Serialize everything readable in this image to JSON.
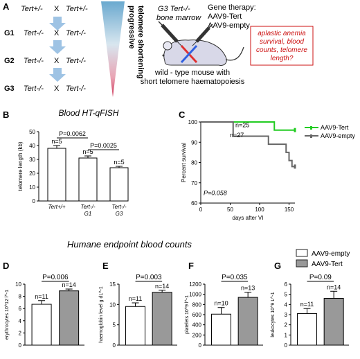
{
  "panels": {
    "A": "A",
    "B": "B",
    "C": "C",
    "D": "D",
    "E": "E",
    "F": "F",
    "G": "G"
  },
  "breeding": {
    "top": {
      "left": "Tert+/-",
      "x": "X",
      "right": "Tert+/-"
    },
    "rows": [
      {
        "gen": "G1",
        "left": "Tert-/-",
        "x": "X",
        "right": "Tert-/-"
      },
      {
        "gen": "G2",
        "left": "Tert-/-",
        "x": "X",
        "right": "Tert-/-"
      },
      {
        "gen": "G3",
        "left": "Tert-/-",
        "x": "X",
        "right": "Tert-/-"
      }
    ],
    "vertical_label_1": "progressive",
    "vertical_label_2": "telomere shortening"
  },
  "therapy": {
    "donor_1": "G3 Tert-/-",
    "donor_2": "bone marrow",
    "gene_title": "Gene therapy:",
    "vector_1": "AAV9-Tert",
    "vector_2": "AAV9-empty",
    "mouse_caption_1": "wild - type mouse with",
    "mouse_caption_2": "short telomere haematopoiesis",
    "question_1": "aplastic anemia",
    "question_2": "survival, blood",
    "question_3": "counts, telomere",
    "question_4": "length?",
    "question_color": "#cc1111"
  },
  "section_title": "Humane endpoint blood counts",
  "legend": {
    "empty": "AAV9-empty",
    "tert": "AAV9-Tert"
  },
  "colors": {
    "empty": "#ffffff",
    "tert": "#999999",
    "km_tert": "#22cc22",
    "km_empty": "#666666"
  },
  "chart_data": [
    {
      "panel": "B",
      "type": "bar",
      "title": "Blood HT-qFISH",
      "ylabel": "telomere length (kb)",
      "ylim": [
        0,
        50
      ],
      "yticks": [
        0,
        10,
        20,
        30,
        40,
        50
      ],
      "categories": [
        "Tert+/+",
        "Tert-/- G1",
        "Tert-/- G3"
      ],
      "cat_lines": [
        [
          "Tert+/+"
        ],
        [
          "Tert-/-",
          "G1"
        ],
        [
          "Tert-/-",
          "G3"
        ]
      ],
      "values": [
        38,
        31,
        24
      ],
      "errors": [
        2,
        1.5,
        1
      ],
      "n_labels": [
        "n=5",
        "n=5",
        "n=5"
      ],
      "pvalues": [
        {
          "label": "P=0.0062",
          "pair": [
            0,
            1
          ]
        },
        {
          "label": "P=0.0025",
          "pair": [
            1,
            2
          ]
        }
      ]
    },
    {
      "panel": "C",
      "type": "line",
      "ylabel": "Percent survival",
      "xlabel": "days after VI",
      "xlim": [
        0,
        160
      ],
      "ylim": [
        60,
        100
      ],
      "xticks": [
        0,
        50,
        100,
        150
      ],
      "yticks": [
        60,
        70,
        80,
        90,
        100
      ],
      "series": [
        {
          "name": "AAV9-Tert",
          "n_label": "n=25",
          "points": [
            [
              0,
              100
            ],
            [
              55,
              100
            ],
            [
              55,
              100
            ],
            [
              125,
              100
            ],
            [
              125,
              96
            ],
            [
              160,
              96
            ]
          ]
        },
        {
          "name": "AAV9-empty",
          "n_label": "n=27",
          "points": [
            [
              0,
              100
            ],
            [
              55,
              100
            ],
            [
              55,
              93
            ],
            [
              115,
              93
            ],
            [
              115,
              89
            ],
            [
              145,
              89
            ],
            [
              145,
              85
            ],
            [
              150,
              85
            ],
            [
              150,
              81
            ],
            [
              155,
              81
            ],
            [
              155,
              78
            ],
            [
              160,
              78
            ]
          ]
        }
      ],
      "pvalue": "P=0.058"
    },
    {
      "panel": "D",
      "type": "bar",
      "ylabel": "erythrocytes 10^12 l^-1",
      "ylim": [
        0,
        10
      ],
      "yticks": [
        0,
        2,
        4,
        6,
        8,
        10
      ],
      "categories": [
        "AAV9-empty",
        "AAV9-Tert"
      ],
      "values": [
        6.7,
        8.9
      ],
      "errors": [
        0.6,
        0.3
      ],
      "n_labels": [
        "n=11",
        "n=14"
      ],
      "pvalue": "P=0.006"
    },
    {
      "panel": "E",
      "type": "bar",
      "ylabel": "haemoglobin level g dL^-1",
      "ylim": [
        0,
        15
      ],
      "yticks": [
        0,
        5,
        10,
        15
      ],
      "categories": [
        "AAV9-empty",
        "AAV9-Tert"
      ],
      "values": [
        9.5,
        13
      ],
      "errors": [
        0.9,
        0.5
      ],
      "n_labels": [
        "n=11",
        "n=14"
      ],
      "pvalue": "P=0.003"
    },
    {
      "panel": "F",
      "type": "bar",
      "ylabel": "platelets 10^9 l^-1",
      "ylim": [
        0,
        1200
      ],
      "yticks": [
        0,
        200,
        400,
        600,
        800,
        1000,
        1200
      ],
      "categories": [
        "AAV9-empty",
        "AAV9-Tert"
      ],
      "values": [
        610,
        940
      ],
      "errors": [
        130,
        100
      ],
      "n_labels": [
        "n=10",
        "n=13"
      ],
      "pvalue": "P=0.035"
    },
    {
      "panel": "G",
      "type": "bar",
      "ylabel": "leukocytes 10^9 L^-1",
      "ylim": [
        0,
        6
      ],
      "yticks": [
        0,
        1,
        2,
        3,
        4,
        5,
        6
      ],
      "categories": [
        "AAV9-empty",
        "AAV9-Tert"
      ],
      "values": [
        3.1,
        4.6
      ],
      "errors": [
        0.5,
        0.7
      ],
      "n_labels": [
        "n=11",
        "n=14"
      ],
      "pvalue": "P=0.09"
    }
  ]
}
